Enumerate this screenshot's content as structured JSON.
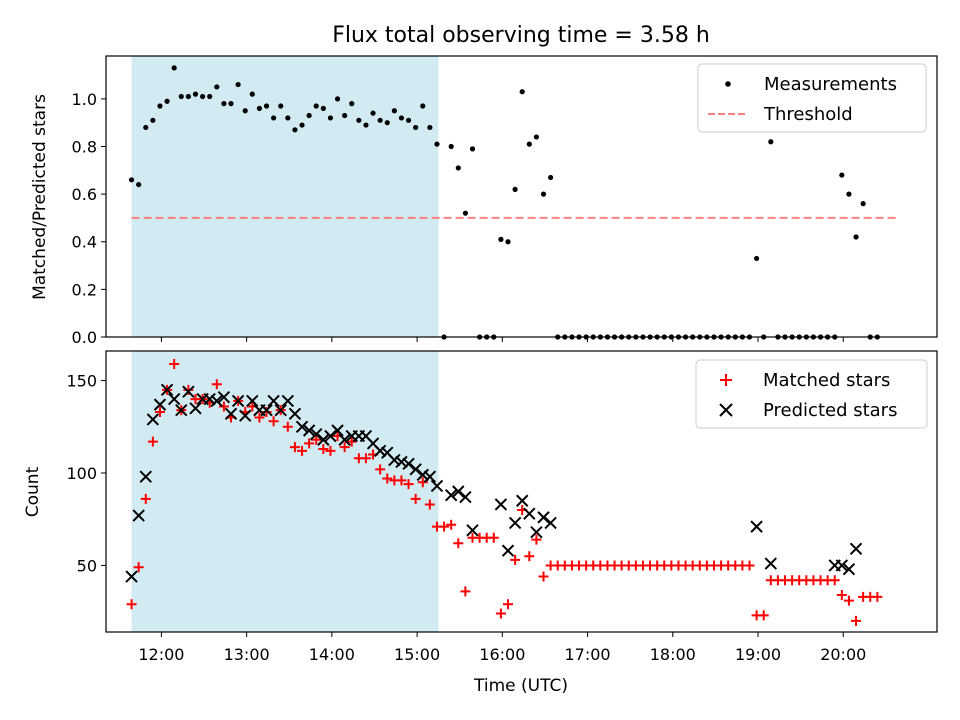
{
  "chart_data": [
    {
      "type": "scatter",
      "title": "Flux total observing time = 3.58 h",
      "xlabel": "",
      "ylabel": "Matched/Predicted stars",
      "xlim": [
        "11:21",
        "21:06"
      ],
      "ylim": [
        0.0,
        1.18
      ],
      "x_ticks": [
        "12:00",
        "13:00",
        "14:00",
        "15:00",
        "16:00",
        "17:00",
        "18:00",
        "19:00",
        "20:00"
      ],
      "y_ticks": [
        "0.0",
        "0.2",
        "0.4",
        "0.6",
        "0.8",
        "1.0"
      ],
      "y_tick_values": [
        0,
        0.2,
        0.4,
        0.6,
        0.8,
        1.0
      ],
      "shaded_region": {
        "x": [
          "11:39",
          "15:15"
        ],
        "color": "#add8e6"
      },
      "legend": {
        "position": "top-right",
        "entries": [
          "Measurements",
          "Threshold"
        ]
      },
      "threshold": {
        "name": "Threshold",
        "x": [
          "11:39",
          "20:38"
        ],
        "y": 0.5,
        "color": "#ff7f7f",
        "style": "dashed"
      },
      "series": [
        {
          "name": "Measurements",
          "marker": "dot",
          "color": "#000000",
          "x": [
            "11:39",
            "11:44",
            "11:49",
            "11:54",
            "11:59",
            "12:04",
            "12:09",
            "12:14",
            "12:19",
            "12:24",
            "12:29",
            "12:34",
            "12:39",
            "12:44",
            "12:49",
            "12:54",
            "12:59",
            "13:04",
            "13:09",
            "13:14",
            "13:19",
            "13:24",
            "13:29",
            "13:34",
            "13:39",
            "13:44",
            "13:49",
            "13:54",
            "13:59",
            "14:04",
            "14:09",
            "14:14",
            "14:19",
            "14:24",
            "14:29",
            "14:34",
            "14:39",
            "14:44",
            "14:49",
            "14:54",
            "14:59",
            "15:04",
            "15:09",
            "15:14",
            "15:19",
            "15:24",
            "15:29",
            "15:34",
            "15:39",
            "15:44",
            "15:49",
            "15:54",
            "15:59",
            "16:04",
            "16:09",
            "16:14",
            "16:19",
            "16:24",
            "16:29",
            "16:34",
            "16:39",
            "16:44",
            "16:49",
            "16:54",
            "16:59",
            "17:04",
            "17:09",
            "17:14",
            "17:19",
            "17:24",
            "17:29",
            "17:34",
            "17:39",
            "17:44",
            "17:49",
            "17:54",
            "17:59",
            "18:04",
            "18:09",
            "18:14",
            "18:19",
            "18:24",
            "18:29",
            "18:34",
            "18:39",
            "18:44",
            "18:49",
            "18:54",
            "18:59",
            "19:04",
            "19:09",
            "19:14",
            "19:19",
            "19:24",
            "19:29",
            "19:34",
            "19:39",
            "19:44",
            "19:49",
            "19:54",
            "19:59",
            "20:04",
            "20:09",
            "20:14",
            "20:19",
            "20:24"
          ],
          "y": [
            0.66,
            0.64,
            0.88,
            0.91,
            0.97,
            0.99,
            1.13,
            1.01,
            1.01,
            1.02,
            1.01,
            1.01,
            1.05,
            0.98,
            0.98,
            1.06,
            0.95,
            1.02,
            0.96,
            0.97,
            0.92,
            0.97,
            0.92,
            0.87,
            0.89,
            0.93,
            0.97,
            0.96,
            0.92,
            1.0,
            0.93,
            0.98,
            0.91,
            0.89,
            0.94,
            0.91,
            0.9,
            0.95,
            0.92,
            0.91,
            0.88,
            0.97,
            0.88,
            0.81,
            0.0,
            0.8,
            0.71,
            0.52,
            0.79,
            0.0,
            0.0,
            0.0,
            0.41,
            0.4,
            0.62,
            1.03,
            0.81,
            0.84,
            0.6,
            0.67,
            0.0,
            0.0,
            0.0,
            0.0,
            0.0,
            0.0,
            0.0,
            0.0,
            0.0,
            0.0,
            0.0,
            0.0,
            0.0,
            0.0,
            0.0,
            0.0,
            0.0,
            0.0,
            0.0,
            0.0,
            0.0,
            0.0,
            0.0,
            0.0,
            0.0,
            0.0,
            0.0,
            0.0,
            0.33,
            0.0,
            0.82,
            0.0,
            0.0,
            0.0,
            0.0,
            0.0,
            0.0,
            0.0,
            0.0,
            0.0,
            0.68,
            0.6,
            0.42,
            0.56,
            0.0,
            0.0
          ]
        }
      ]
    },
    {
      "type": "scatter",
      "title": "",
      "xlabel": "Time (UTC)",
      "ylabel": "Count",
      "xlim": [
        "11:21",
        "21:06"
      ],
      "ylim": [
        14,
        166
      ],
      "x_ticks": [
        "12:00",
        "13:00",
        "14:00",
        "15:00",
        "16:00",
        "17:00",
        "18:00",
        "19:00",
        "20:00"
      ],
      "y_ticks": [
        "50",
        "100",
        "150"
      ],
      "y_tick_values": [
        50,
        100,
        150
      ],
      "shaded_region": {
        "x": [
          "11:39",
          "15:15"
        ],
        "color": "#add8e6"
      },
      "legend": {
        "position": "top-right",
        "entries": [
          "Matched stars",
          "Predicted stars"
        ]
      },
      "series": [
        {
          "name": "Matched stars",
          "marker": "plus",
          "color": "#ff0000",
          "x": [
            "11:39",
            "11:44",
            "11:49",
            "11:54",
            "11:59",
            "12:04",
            "12:09",
            "12:14",
            "12:19",
            "12:24",
            "12:29",
            "12:34",
            "12:39",
            "12:44",
            "12:49",
            "12:54",
            "12:59",
            "13:04",
            "13:09",
            "13:14",
            "13:19",
            "13:24",
            "13:29",
            "13:34",
            "13:39",
            "13:44",
            "13:49",
            "13:54",
            "13:59",
            "14:04",
            "14:09",
            "14:14",
            "14:19",
            "14:24",
            "14:29",
            "14:34",
            "14:39",
            "14:44",
            "14:49",
            "14:54",
            "14:59",
            "15:04",
            "15:09",
            "15:14",
            "15:19",
            "15:24",
            "15:29",
            "15:34",
            "15:39",
            "15:44",
            "15:49",
            "15:54",
            "15:59",
            "16:04",
            "16:09",
            "16:14",
            "16:19",
            "16:24",
            "16:29",
            "16:34",
            "16:39",
            "16:44",
            "16:49",
            "16:54",
            "16:59",
            "17:04",
            "17:09",
            "17:14",
            "17:19",
            "17:24",
            "17:29",
            "17:34",
            "17:39",
            "17:44",
            "17:49",
            "17:54",
            "17:59",
            "18:04",
            "18:09",
            "18:14",
            "18:19",
            "18:24",
            "18:29",
            "18:34",
            "18:39",
            "18:44",
            "18:49",
            "18:54",
            "18:59",
            "19:04",
            "19:09",
            "19:14",
            "19:19",
            "19:24",
            "19:29",
            "19:34",
            "19:39",
            "19:44",
            "19:49",
            "19:54",
            "19:59",
            "20:04",
            "20:09",
            "20:14",
            "20:19",
            "20:24"
          ],
          "y": [
            29,
            49,
            86,
            117,
            133,
            145,
            159,
            134,
            145,
            140,
            140,
            138,
            148,
            136,
            130,
            139,
            133,
            136,
            130,
            133,
            128,
            134,
            125,
            114,
            112,
            116,
            118,
            113,
            112,
            120,
            114,
            117,
            108,
            108,
            110,
            102,
            97,
            96,
            96,
            94,
            86,
            95,
            83,
            71,
            71,
            72,
            62,
            36,
            65,
            65,
            65,
            65,
            24,
            29,
            53,
            80,
            55,
            64,
            44,
            50,
            50,
            50,
            50,
            50,
            50,
            50,
            50,
            50,
            50,
            50,
            50,
            50,
            50,
            50,
            50,
            50,
            50,
            50,
            50,
            50,
            50,
            50,
            50,
            50,
            50,
            50,
            50,
            50,
            23,
            23,
            42,
            42,
            42,
            42,
            42,
            42,
            42,
            42,
            42,
            42,
            34,
            31,
            20,
            33,
            33,
            33
          ]
        },
        {
          "name": "Predicted stars",
          "marker": "x",
          "color": "#000000",
          "x": [
            "11:39",
            "11:44",
            "11:49",
            "11:54",
            "11:59",
            "12:04",
            "12:09",
            "12:14",
            "12:19",
            "12:24",
            "12:29",
            "12:34",
            "12:39",
            "12:44",
            "12:49",
            "12:54",
            "12:59",
            "13:04",
            "13:09",
            "13:14",
            "13:19",
            "13:24",
            "13:29",
            "13:34",
            "13:39",
            "13:44",
            "13:49",
            "13:54",
            "13:59",
            "14:04",
            "14:09",
            "14:14",
            "14:19",
            "14:24",
            "14:29",
            "14:34",
            "14:39",
            "14:44",
            "14:49",
            "14:54",
            "14:59",
            "15:04",
            "15:09",
            "15:14",
            "15:24",
            "15:29",
            "15:34",
            "15:39",
            "15:59",
            "16:04",
            "16:09",
            "16:14",
            "16:19",
            "16:24",
            "16:29",
            "16:34",
            "18:59",
            "19:09",
            "19:54",
            "19:59",
            "20:04",
            "20:09"
          ],
          "y": [
            44,
            77,
            98,
            129,
            137,
            145,
            140,
            134,
            144,
            135,
            140,
            140,
            139,
            141,
            132,
            139,
            131,
            139,
            134,
            134,
            139,
            134,
            139,
            132,
            125,
            123,
            121,
            118,
            120,
            123,
            118,
            120,
            120,
            120,
            116,
            112,
            111,
            107,
            106,
            105,
            102,
            99,
            98,
            93,
            88,
            90,
            87,
            69,
            83,
            58,
            73,
            85,
            78,
            68,
            76,
            73,
            71,
            51,
            50,
            50,
            48,
            59
          ]
        }
      ]
    }
  ]
}
